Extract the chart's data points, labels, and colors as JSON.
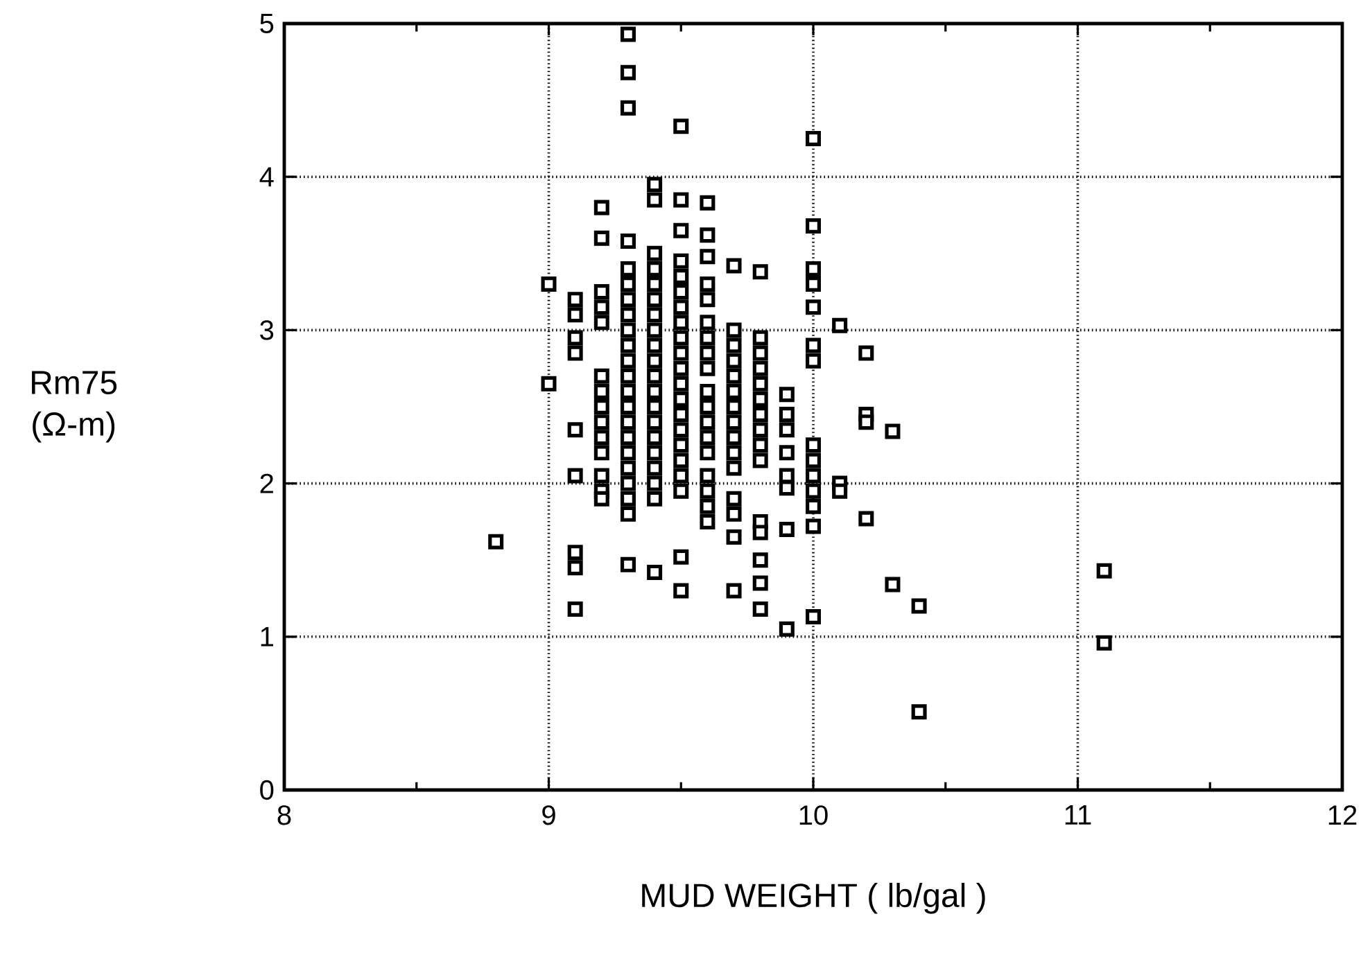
{
  "chart_data": {
    "type": "scatter",
    "xlabel": "MUD WEIGHT  ( lb/gal )",
    "ylabel": "Rm75 (Ω-m)",
    "xlim": [
      8,
      12
    ],
    "ylim": [
      0,
      5
    ],
    "xticks": [
      8,
      9,
      10,
      11,
      12
    ],
    "yticks": [
      0,
      1,
      2,
      3,
      4,
      5
    ],
    "grid": true,
    "marker": "square",
    "series": [
      {
        "color": "#000000",
        "x": [
          8.8,
          9.0,
          9.0,
          9.1,
          9.1,
          9.1,
          9.1,
          9.1,
          9.1,
          9.1,
          9.1,
          9.1,
          9.2,
          9.2,
          9.2,
          9.2,
          9.2,
          9.2,
          9.2,
          9.2,
          9.2,
          9.2,
          9.2,
          9.2,
          9.2,
          9.2,
          9.3,
          9.3,
          9.3,
          9.3,
          9.3,
          9.3,
          9.3,
          9.3,
          9.3,
          9.3,
          9.3,
          9.3,
          9.3,
          9.3,
          9.3,
          9.3,
          9.3,
          9.3,
          9.3,
          9.3,
          9.3,
          9.3,
          9.4,
          9.4,
          9.4,
          9.4,
          9.4,
          9.4,
          9.4,
          9.4,
          9.4,
          9.4,
          9.4,
          9.4,
          9.4,
          9.4,
          9.4,
          9.4,
          9.4,
          9.4,
          9.4,
          9.4,
          9.5,
          9.5,
          9.5,
          9.5,
          9.5,
          9.5,
          9.5,
          9.5,
          9.5,
          9.5,
          9.5,
          9.5,
          9.5,
          9.5,
          9.5,
          9.5,
          9.5,
          9.5,
          9.5,
          9.5,
          9.5,
          9.6,
          9.6,
          9.6,
          9.6,
          9.6,
          9.6,
          9.6,
          9.6,
          9.6,
          9.6,
          9.6,
          9.6,
          9.6,
          9.6,
          9.6,
          9.6,
          9.6,
          9.6,
          9.7,
          9.7,
          9.7,
          9.7,
          9.7,
          9.7,
          9.7,
          9.7,
          9.7,
          9.7,
          9.7,
          9.7,
          9.7,
          9.7,
          9.7,
          9.8,
          9.8,
          9.8,
          9.8,
          9.8,
          9.8,
          9.8,
          9.8,
          9.8,
          9.8,
          9.8,
          9.8,
          9.8,
          9.8,
          9.8,
          9.9,
          9.9,
          9.9,
          9.9,
          9.9,
          9.9,
          9.9,
          9.9,
          10.0,
          10.0,
          10.0,
          10.0,
          10.0,
          10.0,
          10.0,
          10.0,
          10.0,
          10.0,
          10.0,
          10.0,
          10.0,
          10.0,
          10.1,
          10.1,
          10.1,
          10.2,
          10.2,
          10.2,
          10.2,
          10.3,
          10.3,
          10.4,
          10.4,
          11.1,
          11.1
        ],
        "values": [
          1.62,
          3.3,
          2.65,
          3.2,
          3.1,
          2.95,
          2.85,
          2.35,
          2.05,
          1.55,
          1.45,
          1.18,
          3.8,
          3.6,
          3.25,
          3.15,
          3.05,
          2.7,
          2.6,
          2.5,
          2.4,
          2.3,
          2.2,
          2.05,
          1.95,
          1.9,
          4.93,
          4.68,
          4.45,
          3.58,
          3.4,
          3.3,
          3.2,
          3.1,
          3.0,
          2.9,
          2.8,
          2.7,
          2.6,
          2.5,
          2.4,
          2.3,
          2.2,
          2.1,
          2.0,
          1.9,
          1.8,
          1.47,
          3.95,
          3.85,
          3.5,
          3.4,
          3.3,
          3.2,
          3.1,
          3.0,
          2.9,
          2.8,
          2.7,
          2.6,
          2.5,
          2.4,
          2.3,
          2.2,
          2.1,
          2.0,
          1.9,
          1.42,
          4.33,
          3.85,
          3.65,
          3.45,
          3.35,
          3.25,
          3.15,
          3.05,
          2.95,
          2.85,
          2.75,
          2.65,
          2.55,
          2.45,
          2.35,
          2.25,
          2.15,
          2.05,
          1.95,
          1.52,
          1.3,
          3.83,
          3.62,
          3.48,
          3.3,
          3.2,
          3.05,
          2.95,
          2.85,
          2.75,
          2.6,
          2.5,
          2.4,
          2.3,
          2.2,
          2.05,
          1.95,
          1.85,
          1.75,
          3.42,
          3.0,
          2.9,
          2.8,
          2.7,
          2.6,
          2.5,
          2.4,
          2.3,
          2.2,
          2.1,
          1.9,
          1.8,
          1.65,
          1.3,
          3.38,
          2.95,
          2.85,
          2.75,
          2.65,
          2.55,
          2.45,
          2.35,
          2.25,
          2.15,
          1.75,
          1.68,
          1.5,
          1.35,
          1.18,
          2.58,
          2.45,
          2.35,
          2.2,
          2.05,
          1.97,
          1.7,
          1.05,
          4.25,
          3.68,
          3.4,
          3.3,
          3.15,
          2.9,
          2.8,
          2.25,
          2.15,
          2.05,
          1.95,
          1.85,
          1.72,
          1.13,
          3.03,
          2.0,
          1.95,
          2.85,
          2.45,
          2.4,
          1.77,
          2.34,
          1.34,
          1.2,
          0.51,
          1.43,
          0.96
        ]
      }
    ]
  }
}
